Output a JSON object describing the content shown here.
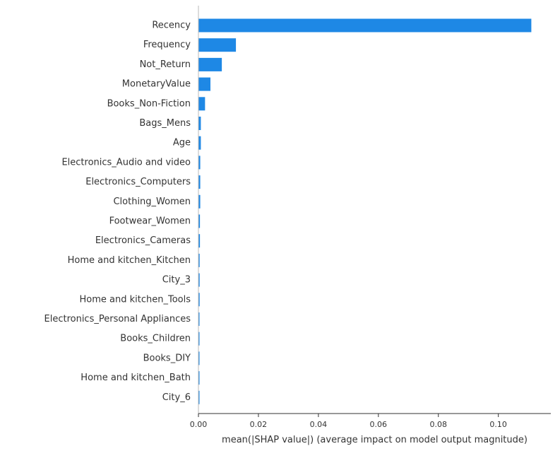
{
  "chart_data": {
    "type": "bar",
    "orientation": "horizontal",
    "title": "",
    "xlabel": "mean(|SHAP value|) (average impact on model output magnitude)",
    "ylabel": "",
    "xlim": [
      0,
      0.1175
    ],
    "x_ticks": [
      0.0,
      0.02,
      0.04,
      0.06,
      0.08,
      0.1
    ],
    "x_tick_labels": [
      "0.00",
      "0.02",
      "0.04",
      "0.06",
      "0.08",
      "0.10"
    ],
    "grid": false,
    "legend": "none",
    "categories": [
      "Recency",
      "Frequency",
      "Not_Return",
      "MonetaryValue",
      "Books_Non-Fiction",
      "Bags_Mens",
      "Age",
      "Electronics_Audio and video",
      "Electronics_Computers",
      "Clothing_Women",
      "Footwear_Women",
      "Electronics_Cameras",
      "Home and kitchen_Kitchen",
      "City_3",
      "Home and kitchen_Tools",
      "Electronics_Personal Appliances",
      "Books_Children",
      "Books_DIY",
      "Home and kitchen_Bath",
      "City_6"
    ],
    "values": [
      0.111,
      0.0125,
      0.0078,
      0.004,
      0.0022,
      0.0008,
      0.0008,
      0.0006,
      0.0006,
      0.0006,
      0.0005,
      0.0005,
      0.0004,
      0.0004,
      0.0004,
      0.0003,
      0.0003,
      0.0003,
      0.0003,
      0.0003
    ],
    "bar_color": "#1e88e5"
  }
}
